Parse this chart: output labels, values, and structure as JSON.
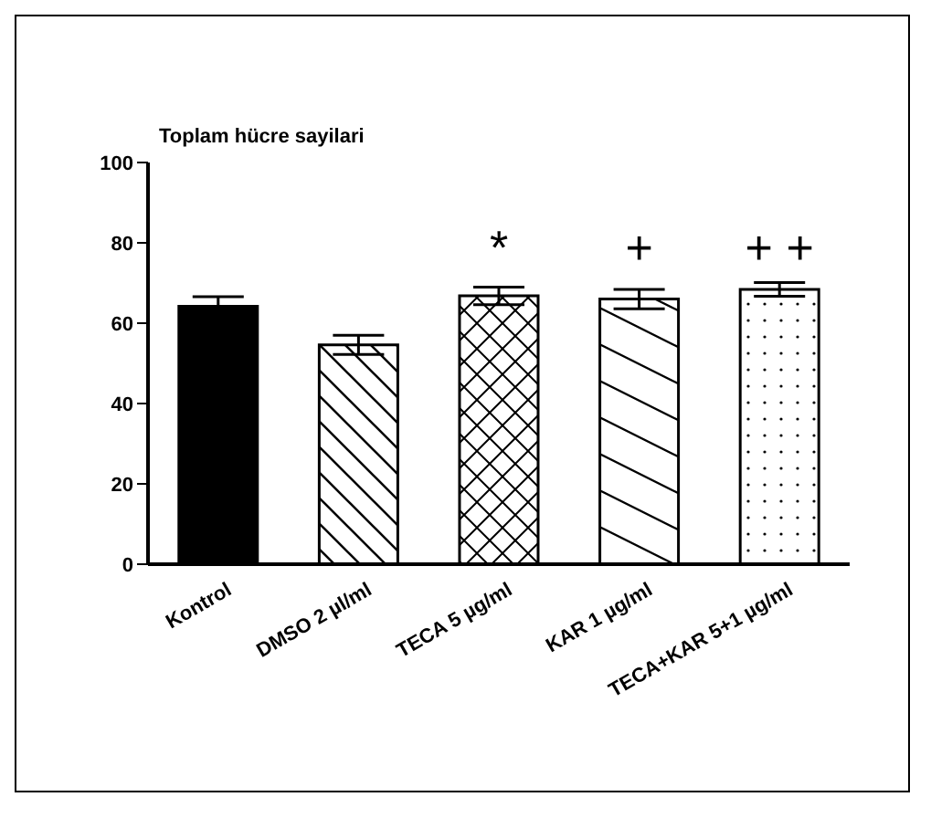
{
  "chart_data": {
    "type": "bar",
    "title": "Toplam hücre sayilari",
    "categories": [
      "Kontrol",
      "DMSO 2 µl/ml",
      "TECA 5 µg/ml",
      "KAR 1 µg/ml",
      "TECA+KAR 5+1 µg/ml"
    ],
    "values": [
      64.2,
      54.6,
      66.8,
      66.0,
      68.4
    ],
    "errors": [
      2.4,
      2.4,
      2.2,
      2.4,
      1.7
    ],
    "colors": [
      "#000000",
      "#000000",
      "#000000",
      "#000000",
      "#000000"
    ],
    "ylim": [
      0,
      100
    ],
    "yticks": [
      0,
      20,
      40,
      60,
      80,
      100
    ],
    "grid": false,
    "legend": false,
    "annotations": [
      "*",
      "+",
      "+ +"
    ]
  }
}
